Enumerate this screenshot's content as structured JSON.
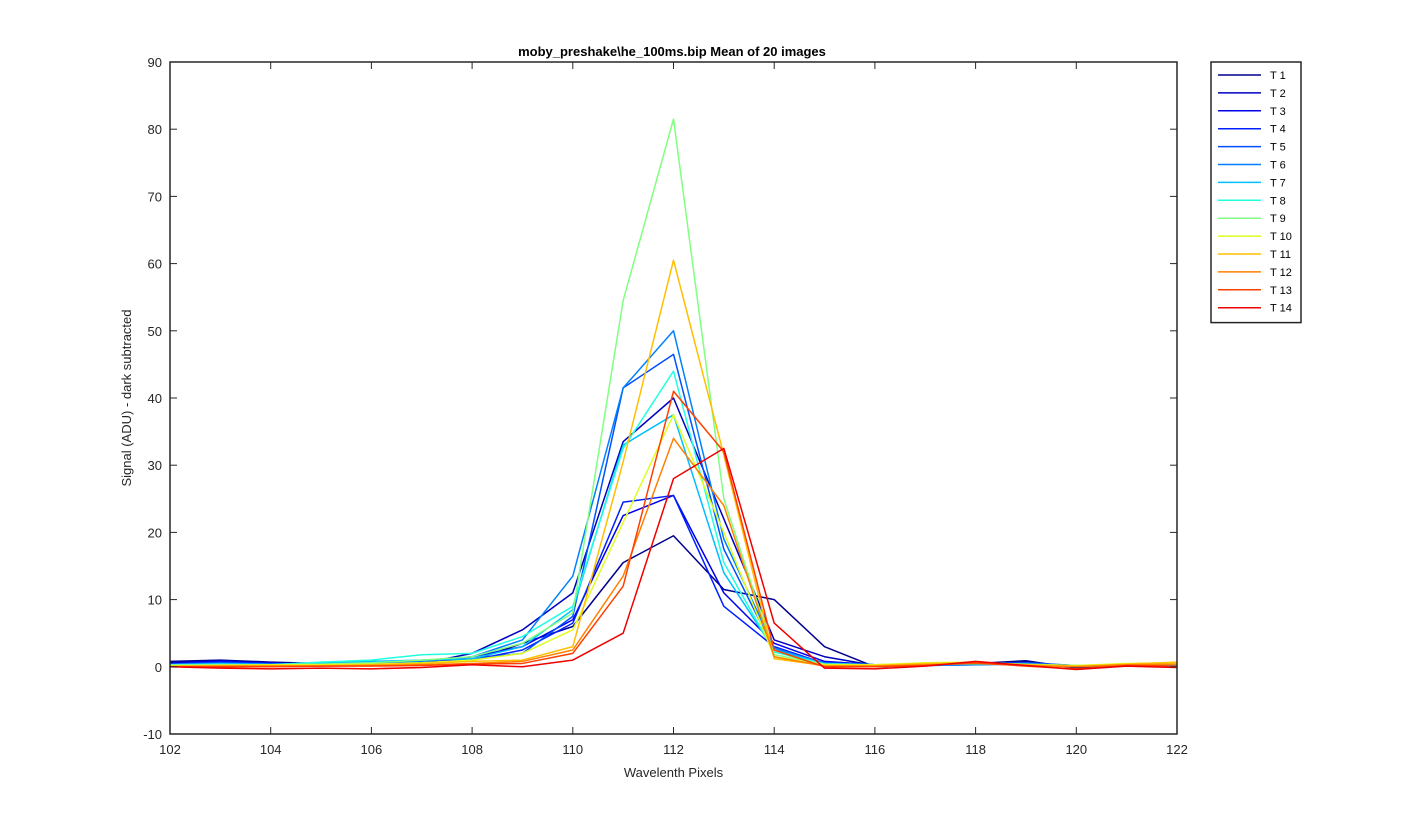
{
  "chart_data": {
    "type": "line",
    "title": "moby_preshake\\he_100ms.bip  Mean of 20 images",
    "xlabel": "Wavelenth Pixels",
    "ylabel": "Signal (ADU) - dark subtracted",
    "xlim": [
      102,
      122
    ],
    "ylim": [
      -10,
      90
    ],
    "xticks": [
      102,
      104,
      106,
      108,
      110,
      112,
      114,
      116,
      118,
      120,
      122
    ],
    "yticks": [
      -10,
      0,
      10,
      20,
      30,
      40,
      50,
      60,
      70,
      80,
      90
    ],
    "grid": false,
    "legend_position": "outside-top-right",
    "x": [
      102,
      103,
      104,
      105,
      106,
      107,
      108,
      109,
      110,
      111,
      112,
      113,
      114,
      115,
      116,
      117,
      118,
      119,
      120,
      121,
      122
    ],
    "series": [
      {
        "name": "T 1",
        "color": "#00008F",
        "values": [
          0.8,
          1.0,
          0.7,
          0.5,
          0.4,
          0.6,
          0.9,
          3.5,
          6.0,
          15.5,
          19.5,
          11.5,
          10.0,
          3.0,
          0.0,
          0.2,
          0.5,
          0.9,
          -0.2,
          0.3,
          0.4
        ]
      },
      {
        "name": "T 2",
        "color": "#0000BF",
        "values": [
          0.6,
          0.9,
          0.6,
          0.4,
          0.3,
          0.5,
          2.0,
          5.5,
          11.0,
          33.5,
          40.0,
          22.0,
          4.0,
          1.5,
          0.2,
          0.3,
          0.4,
          0.7,
          0.0,
          0.2,
          0.3
        ]
      },
      {
        "name": "T 3",
        "color": "#0000EF",
        "values": [
          0.5,
          0.8,
          0.5,
          0.4,
          0.3,
          0.4,
          1.5,
          3.0,
          7.0,
          22.5,
          25.5,
          11.0,
          3.5,
          0.8,
          0.3,
          0.2,
          0.4,
          0.6,
          0.1,
          0.2,
          0.3
        ]
      },
      {
        "name": "T 4",
        "color": "#0020FF",
        "values": [
          0.4,
          0.7,
          0.5,
          0.3,
          0.2,
          0.5,
          1.0,
          2.5,
          6.5,
          24.5,
          25.5,
          9.0,
          3.0,
          0.5,
          0.2,
          0.2,
          0.3,
          0.5,
          0.2,
          0.2,
          0.3
        ]
      },
      {
        "name": "T 5",
        "color": "#0050FF",
        "values": [
          0.4,
          0.6,
          0.4,
          0.3,
          0.4,
          0.4,
          1.2,
          2.0,
          7.5,
          41.5,
          46.5,
          17.5,
          2.5,
          0.6,
          0.3,
          0.2,
          0.4,
          0.6,
          0.2,
          0.1,
          0.2
        ]
      },
      {
        "name": "T 6",
        "color": "#0080FF",
        "values": [
          0.3,
          0.5,
          0.4,
          0.5,
          0.6,
          0.8,
          1.5,
          4.0,
          13.5,
          41.5,
          50.0,
          19.0,
          2.8,
          0.4,
          0.2,
          0.2,
          0.3,
          0.4,
          0.1,
          0.2,
          0.2
        ]
      },
      {
        "name": "T 7",
        "color": "#00BFFF",
        "values": [
          0.3,
          0.4,
          0.3,
          0.6,
          0.8,
          1.0,
          1.2,
          3.0,
          8.5,
          33.0,
          37.5,
          14.0,
          2.5,
          0.5,
          0.3,
          0.3,
          0.4,
          0.3,
          0.2,
          0.2,
          0.3
        ]
      },
      {
        "name": "T 8",
        "color": "#20FFDF",
        "values": [
          0.3,
          0.4,
          0.3,
          0.7,
          1.0,
          1.8,
          2.0,
          4.5,
          9.0,
          32.5,
          44.0,
          15.5,
          2.2,
          0.4,
          0.3,
          0.4,
          0.5,
          0.3,
          0.2,
          0.3,
          0.4
        ]
      },
      {
        "name": "T 9",
        "color": "#80FF80",
        "values": [
          0.2,
          0.3,
          0.3,
          0.4,
          0.6,
          1.0,
          1.5,
          3.5,
          8.0,
          54.5,
          81.5,
          25.0,
          1.8,
          0.4,
          0.3,
          0.5,
          0.6,
          0.4,
          0.2,
          0.4,
          0.5
        ]
      },
      {
        "name": "T 10",
        "color": "#DFFF20",
        "values": [
          0.2,
          0.2,
          0.3,
          0.3,
          0.4,
          0.6,
          1.0,
          2.0,
          5.5,
          21.5,
          37.5,
          20.0,
          1.5,
          0.3,
          0.3,
          0.6,
          0.7,
          0.3,
          0.2,
          0.5,
          0.6
        ]
      },
      {
        "name": "T 11",
        "color": "#FFBF00",
        "values": [
          0.1,
          0.2,
          0.2,
          0.2,
          0.3,
          0.5,
          0.8,
          1.0,
          3.0,
          30.5,
          60.5,
          31.5,
          1.2,
          0.2,
          0.2,
          0.5,
          0.6,
          0.3,
          0.1,
          0.4,
          0.7
        ]
      },
      {
        "name": "T 12",
        "color": "#FF8000",
        "values": [
          0.0,
          0.1,
          0.1,
          0.1,
          0.2,
          0.3,
          0.5,
          0.8,
          2.5,
          13.5,
          34.0,
          24.0,
          1.5,
          0.1,
          0.1,
          0.3,
          0.5,
          0.2,
          0.0,
          0.3,
          0.4
        ]
      },
      {
        "name": "T 13",
        "color": "#FF4000",
        "values": [
          0.0,
          0.0,
          0.0,
          0.1,
          0.1,
          0.2,
          0.4,
          0.5,
          2.0,
          12.0,
          41.0,
          32.0,
          2.5,
          0.0,
          0.0,
          0.2,
          0.6,
          0.1,
          -0.3,
          0.2,
          0.1
        ]
      },
      {
        "name": "T 14",
        "color": "#EF0000",
        "values": [
          0.0,
          -0.2,
          -0.3,
          -0.2,
          -0.3,
          -0.1,
          0.3,
          0.0,
          1.0,
          5.0,
          28.0,
          32.5,
          6.5,
          -0.2,
          -0.3,
          0.1,
          0.8,
          0.2,
          -0.4,
          0.1,
          -0.1
        ]
      }
    ]
  }
}
